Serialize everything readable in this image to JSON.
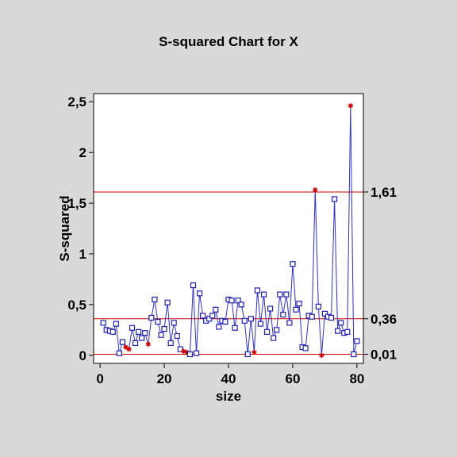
{
  "chart_data": {
    "type": "line",
    "title": "S-squared Chart for X",
    "xlabel": "size",
    "ylabel": "S-squared",
    "xlim": [
      -2,
      82
    ],
    "ylim": [
      -0.08,
      2.58
    ],
    "x_ticks": [
      0,
      20,
      40,
      60,
      80
    ],
    "x_tick_labels": [
      "0",
      "20",
      "40",
      "60",
      "80"
    ],
    "y_ticks": [
      0,
      0.5,
      1,
      1.5,
      2,
      2.5
    ],
    "y_tick_labels": [
      "0",
      "0,5",
      "1",
      "1,5",
      "2",
      "2,5"
    ],
    "grid": false,
    "control_limits": [
      {
        "name": "UCL",
        "value": 1.61,
        "label": "1,61"
      },
      {
        "name": "CL",
        "value": 0.36,
        "label": "0,36"
      },
      {
        "name": "LCL",
        "value": 0.01,
        "label": "0,01"
      }
    ],
    "series": [
      {
        "x": [
          1,
          2,
          3,
          4,
          5,
          6,
          7,
          8,
          9,
          10,
          11,
          12,
          13,
          14,
          15,
          16,
          17,
          18,
          19,
          20,
          21,
          22,
          23,
          24,
          25,
          26,
          27,
          28,
          29,
          30,
          31,
          32,
          33,
          34,
          35,
          36,
          37,
          38,
          39,
          40,
          41,
          42,
          43,
          44,
          45,
          46,
          47,
          48,
          49,
          50,
          51,
          52,
          53,
          54,
          55,
          56,
          57,
          58,
          59,
          60,
          61,
          62,
          63,
          64,
          65,
          66,
          67,
          68,
          69,
          70,
          71,
          72,
          73,
          74,
          75,
          76,
          77,
          78,
          79,
          80
        ],
        "y": [
          0.32,
          0.25,
          0.24,
          0.23,
          0.31,
          0.02,
          0.13,
          0.08,
          0.06,
          0.27,
          0.12,
          0.23,
          0.17,
          0.22,
          0.11,
          0.37,
          0.55,
          0.33,
          0.2,
          0.26,
          0.52,
          0.12,
          0.32,
          0.19,
          0.06,
          0.04,
          0.03,
          0.01,
          0.69,
          0.02,
          0.61,
          0.39,
          0.34,
          0.36,
          0.39,
          0.45,
          0.28,
          0.34,
          0.33,
          0.55,
          0.54,
          0.27,
          0.54,
          0.5,
          0.34,
          0.01,
          0.36,
          0.03,
          0.64,
          0.31,
          0.6,
          0.23,
          0.46,
          0.17,
          0.25,
          0.6,
          0.4,
          0.6,
          0.32,
          0.9,
          0.45,
          0.51,
          0.08,
          0.07,
          0.39,
          0.38,
          1.63,
          0.48,
          0.0,
          0.41,
          0.38,
          0.37,
          1.54,
          0.24,
          0.32,
          0.22,
          0.23,
          2.46,
          0.01,
          0.14
        ],
        "out_of_limits_marker": "star",
        "in_limits_marker": "square"
      }
    ]
  }
}
